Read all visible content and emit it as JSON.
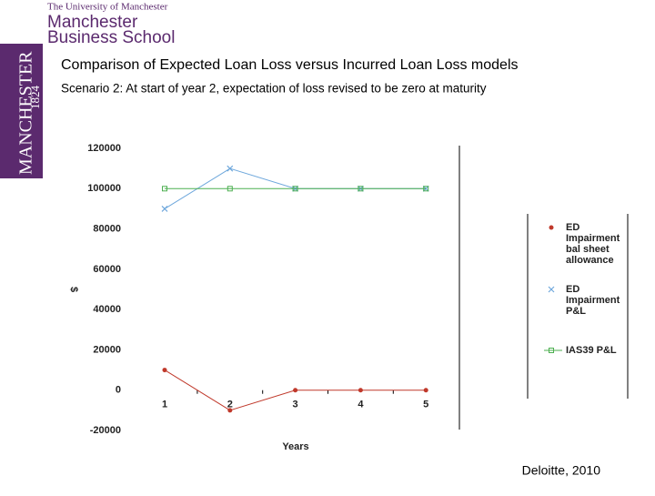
{
  "header": {
    "university": "The University of Manchester",
    "school_line1": "Manchester",
    "school_line2": "Business School",
    "side_name": "MANCHESTER",
    "side_year": "1824"
  },
  "slide": {
    "title": "Comparison of Expected Loan Loss versus Incurred Loan Loss models",
    "subtitle": "Scenario 2: At start of year 2, expectation of loss revised to be zero at maturity",
    "source": "Deloitte, 2010"
  },
  "chart_data": {
    "type": "line",
    "categories": [
      "1",
      "2",
      "3",
      "4",
      "5"
    ],
    "series": [
      {
        "name": "ED Impairment bal sheet allowance",
        "color": "#c0392b",
        "marker": "circle",
        "values": [
          10000,
          -10000,
          0,
          0,
          0
        ]
      },
      {
        "name": "ED Impairment P&L",
        "color": "#6fa8dc",
        "marker": "x",
        "values": [
          90000,
          110000,
          100000,
          100000,
          100000
        ]
      },
      {
        "name": "IAS39 P&L",
        "color": "#4caf50",
        "marker": "square",
        "values": [
          100000,
          100000,
          100000,
          100000,
          100000
        ]
      }
    ],
    "ylim": [
      -20000,
      120000
    ],
    "yticks": [
      -20000,
      0,
      20000,
      40000,
      60000,
      80000,
      100000,
      120000
    ],
    "x_label": "Years",
    "y_label": "$",
    "grid": false,
    "legend": "right"
  }
}
